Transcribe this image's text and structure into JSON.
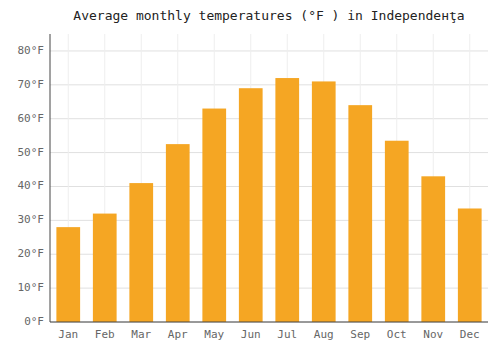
{
  "chart_data": {
    "type": "bar",
    "title": "Average monthly temperatures (°F ) in Independенţa",
    "categories": [
      "Jan",
      "Feb",
      "Mar",
      "Apr",
      "May",
      "Jun",
      "Jul",
      "Aug",
      "Sep",
      "Oct",
      "Nov",
      "Dec"
    ],
    "values": [
      28,
      32,
      41,
      52.5,
      63,
      69,
      72,
      71,
      64,
      53.5,
      43,
      33.5
    ],
    "color": "#F5A623",
    "ylim": [
      0,
      85
    ],
    "yticks": [
      {
        "value": 0,
        "label": "0°F"
      },
      {
        "value": 10,
        "label": "10°F"
      },
      {
        "value": 20,
        "label": "20°F"
      },
      {
        "value": 30,
        "label": "30°F"
      },
      {
        "value": 40,
        "label": "40°F"
      },
      {
        "value": 50,
        "label": "50°F"
      },
      {
        "value": 60,
        "label": "60°F"
      },
      {
        "value": 70,
        "label": "70°F"
      },
      {
        "value": 80,
        "label": "80°F"
      }
    ],
    "grid": true
  }
}
